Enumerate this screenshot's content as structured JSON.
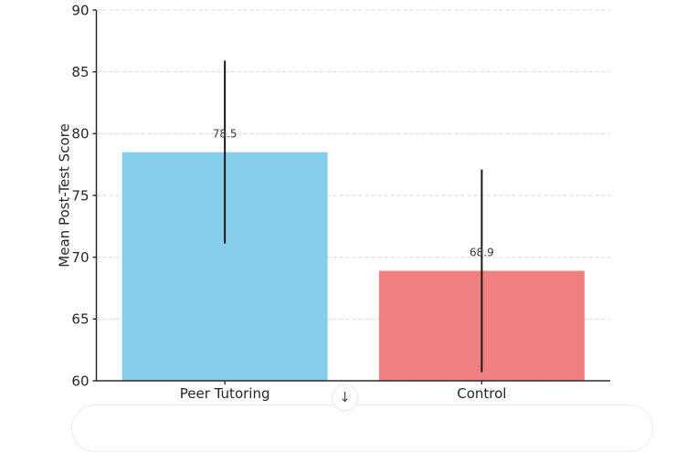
{
  "page": {
    "background": "#ffffff",
    "scroll_button": {
      "glyph": "↓"
    }
  },
  "chart_data": {
    "type": "bar",
    "title": "",
    "categories": [
      "Peer Tutoring",
      "Control"
    ],
    "values": [
      78.5,
      68.9
    ],
    "errors": [
      7.4,
      8.2
    ],
    "bar_labels": [
      "78.5",
      "68.9"
    ],
    "bar_colors": [
      "#87CEEB",
      "#F08080"
    ],
    "xlabel": "",
    "ylabel": "Mean Post-Test Score",
    "ylim": [
      60,
      90
    ],
    "yticks": [
      60,
      65,
      70,
      75,
      80,
      85,
      90
    ],
    "grid": "horizontal-dashed",
    "legend": "none",
    "colors": {
      "error_bar": "#1a1a1a",
      "axis": "#2b2b2b",
      "tick_label": "#262626",
      "grid_line": "#dedede",
      "value_label": "#3d3d3d"
    }
  }
}
